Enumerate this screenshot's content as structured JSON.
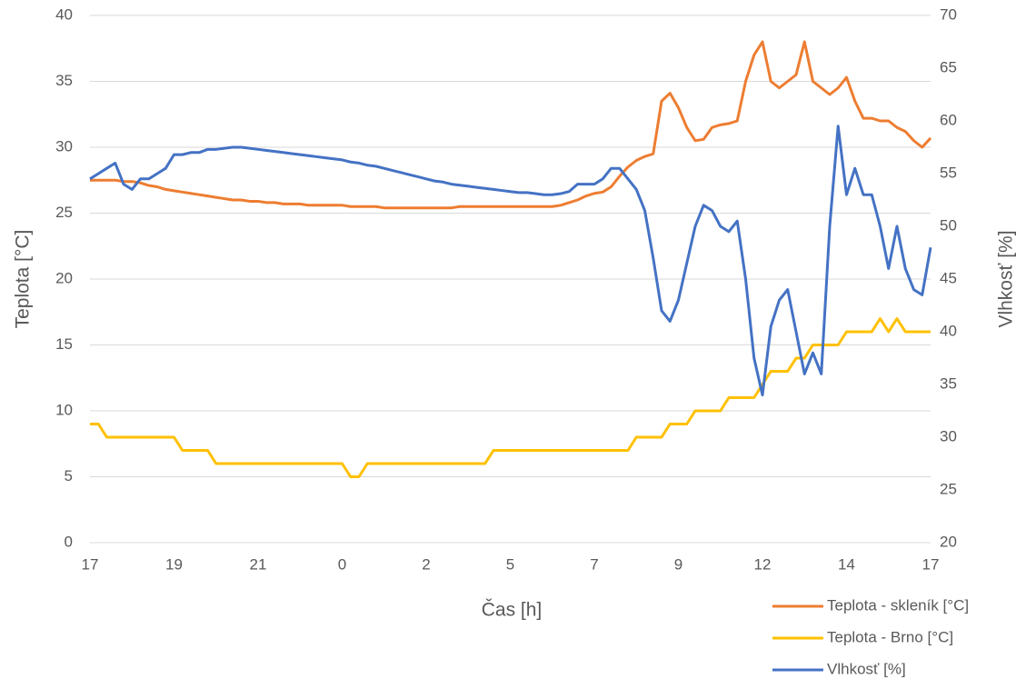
{
  "chart_data": {
    "type": "line",
    "y_label": "Teplota [°C]",
    "y2_label": "Vlhkosť [%]",
    "x_label": "Čas [h]",
    "categories": [
      "17",
      null,
      null,
      null,
      null,
      null,
      null,
      null,
      null,
      null,
      "19",
      null,
      null,
      null,
      null,
      null,
      null,
      null,
      null,
      null,
      "21",
      null,
      null,
      null,
      null,
      null,
      null,
      null,
      null,
      null,
      "0",
      null,
      null,
      null,
      null,
      null,
      null,
      null,
      null,
      null,
      "2",
      null,
      null,
      null,
      null,
      null,
      null,
      null,
      null,
      null,
      "5",
      null,
      null,
      null,
      null,
      null,
      null,
      null,
      null,
      null,
      "7",
      null,
      null,
      null,
      null,
      null,
      null,
      null,
      null,
      null,
      "9",
      null,
      null,
      null,
      null,
      null,
      null,
      null,
      null,
      null,
      "12",
      null,
      null,
      null,
      null,
      null,
      null,
      null,
      null,
      null,
      "14",
      null,
      null,
      null,
      null,
      null,
      null,
      null,
      null,
      null,
      "17"
    ],
    "series": [
      {
        "name": "Teplota - skleník  [°C]",
        "color": "#ed7d31",
        "values": [
          27.5,
          27.5,
          27.5,
          27.5,
          27.4,
          27.4,
          27.3,
          27.1,
          27,
          26.8,
          26.7,
          26.6,
          26.5,
          26.4,
          26.3,
          26.2,
          26.1,
          26,
          26,
          25.9,
          25.9,
          25.8,
          25.8,
          25.7,
          25.7,
          25.7,
          25.6,
          25.6,
          25.6,
          25.6,
          25.6,
          25.5,
          25.5,
          25.5,
          25.5,
          25.4,
          25.4,
          25.4,
          25.4,
          25.4,
          25.4,
          25.4,
          25.4,
          25.4,
          25.5,
          25.5,
          25.5,
          25.5,
          25.5,
          25.5,
          25.5,
          25.5,
          25.5,
          25.5,
          25.5,
          25.5,
          25.6,
          25.8,
          26,
          26.3,
          26.5,
          26.6,
          27,
          27.8,
          28.5,
          29,
          29.3,
          29.5,
          33.5,
          34.1,
          33,
          31.5,
          30.5,
          30.6,
          31.5,
          31.7,
          31.8,
          32,
          35,
          37,
          38,
          35,
          34.5,
          35,
          35.5,
          38,
          35,
          34.5,
          34,
          34.5,
          35.3,
          33.5,
          32.2,
          32.2,
          32,
          32,
          31.5,
          31.2,
          30.5,
          30,
          30.7
        ]
      },
      {
        "name": "Teplota - Brno [°C]",
        "color": "#ffc000",
        "values": [
          9,
          9,
          8,
          8,
          8,
          8,
          8,
          8,
          8,
          8,
          8,
          7,
          7,
          7,
          7,
          6,
          6,
          6,
          6,
          6,
          6,
          6,
          6,
          6,
          6,
          6,
          6,
          6,
          6,
          6,
          6,
          5,
          5,
          6,
          6,
          6,
          6,
          6,
          6,
          6,
          6,
          6,
          6,
          6,
          6,
          6,
          6,
          6,
          7,
          7,
          7,
          7,
          7,
          7,
          7,
          7,
          7,
          7,
          7,
          7,
          7,
          7,
          7,
          7,
          7,
          8,
          8,
          8,
          8,
          9,
          9,
          9,
          10,
          10,
          10,
          10,
          11,
          11,
          11,
          11,
          12,
          13,
          13,
          13,
          14,
          14,
          15,
          15,
          15,
          15,
          16,
          16,
          16,
          16,
          17,
          16,
          17,
          16,
          16,
          16,
          16
        ]
      },
      {
        "name": "Vlhkosť  [%]",
        "color": "#4472c4",
        "axis": "y2",
        "values": [
          54.5,
          55,
          55.5,
          56,
          54,
          53.5,
          54.5,
          54.5,
          55,
          55.5,
          56.8,
          56.8,
          57,
          57,
          57.3,
          57.3,
          57.4,
          57.5,
          57.5,
          57.4,
          57.3,
          57.2,
          57.1,
          57,
          56.9,
          56.8,
          56.7,
          56.6,
          56.5,
          56.4,
          56.3,
          56.1,
          56,
          55.8,
          55.7,
          55.5,
          55.3,
          55.1,
          54.9,
          54.7,
          54.5,
          54.3,
          54.2,
          54,
          53.9,
          53.8,
          53.7,
          53.6,
          53.5,
          53.4,
          53.3,
          53.2,
          53.2,
          53.1,
          53,
          53,
          53.1,
          53.3,
          54,
          54,
          54,
          54.5,
          55.5,
          55.5,
          54.5,
          53.5,
          51.5,
          47,
          42,
          41,
          43,
          46.5,
          50,
          52,
          51.5,
          50,
          49.5,
          50.5,
          45,
          37.5,
          34,
          40.5,
          43,
          44,
          40,
          36,
          38,
          36,
          50,
          59.5,
          53,
          55.5,
          53,
          53,
          50,
          46,
          50,
          46,
          44,
          43.5,
          48
        ]
      }
    ],
    "ylim": [
      0,
      40
    ],
    "yticks": [
      0,
      5,
      10,
      15,
      20,
      25,
      30,
      35,
      40
    ],
    "y2lim": [
      20,
      70
    ],
    "y2ticks": [
      20,
      25,
      30,
      35,
      40,
      45,
      50,
      55,
      60,
      65,
      70
    ],
    "grid": true,
    "legend": "bottom-right"
  }
}
